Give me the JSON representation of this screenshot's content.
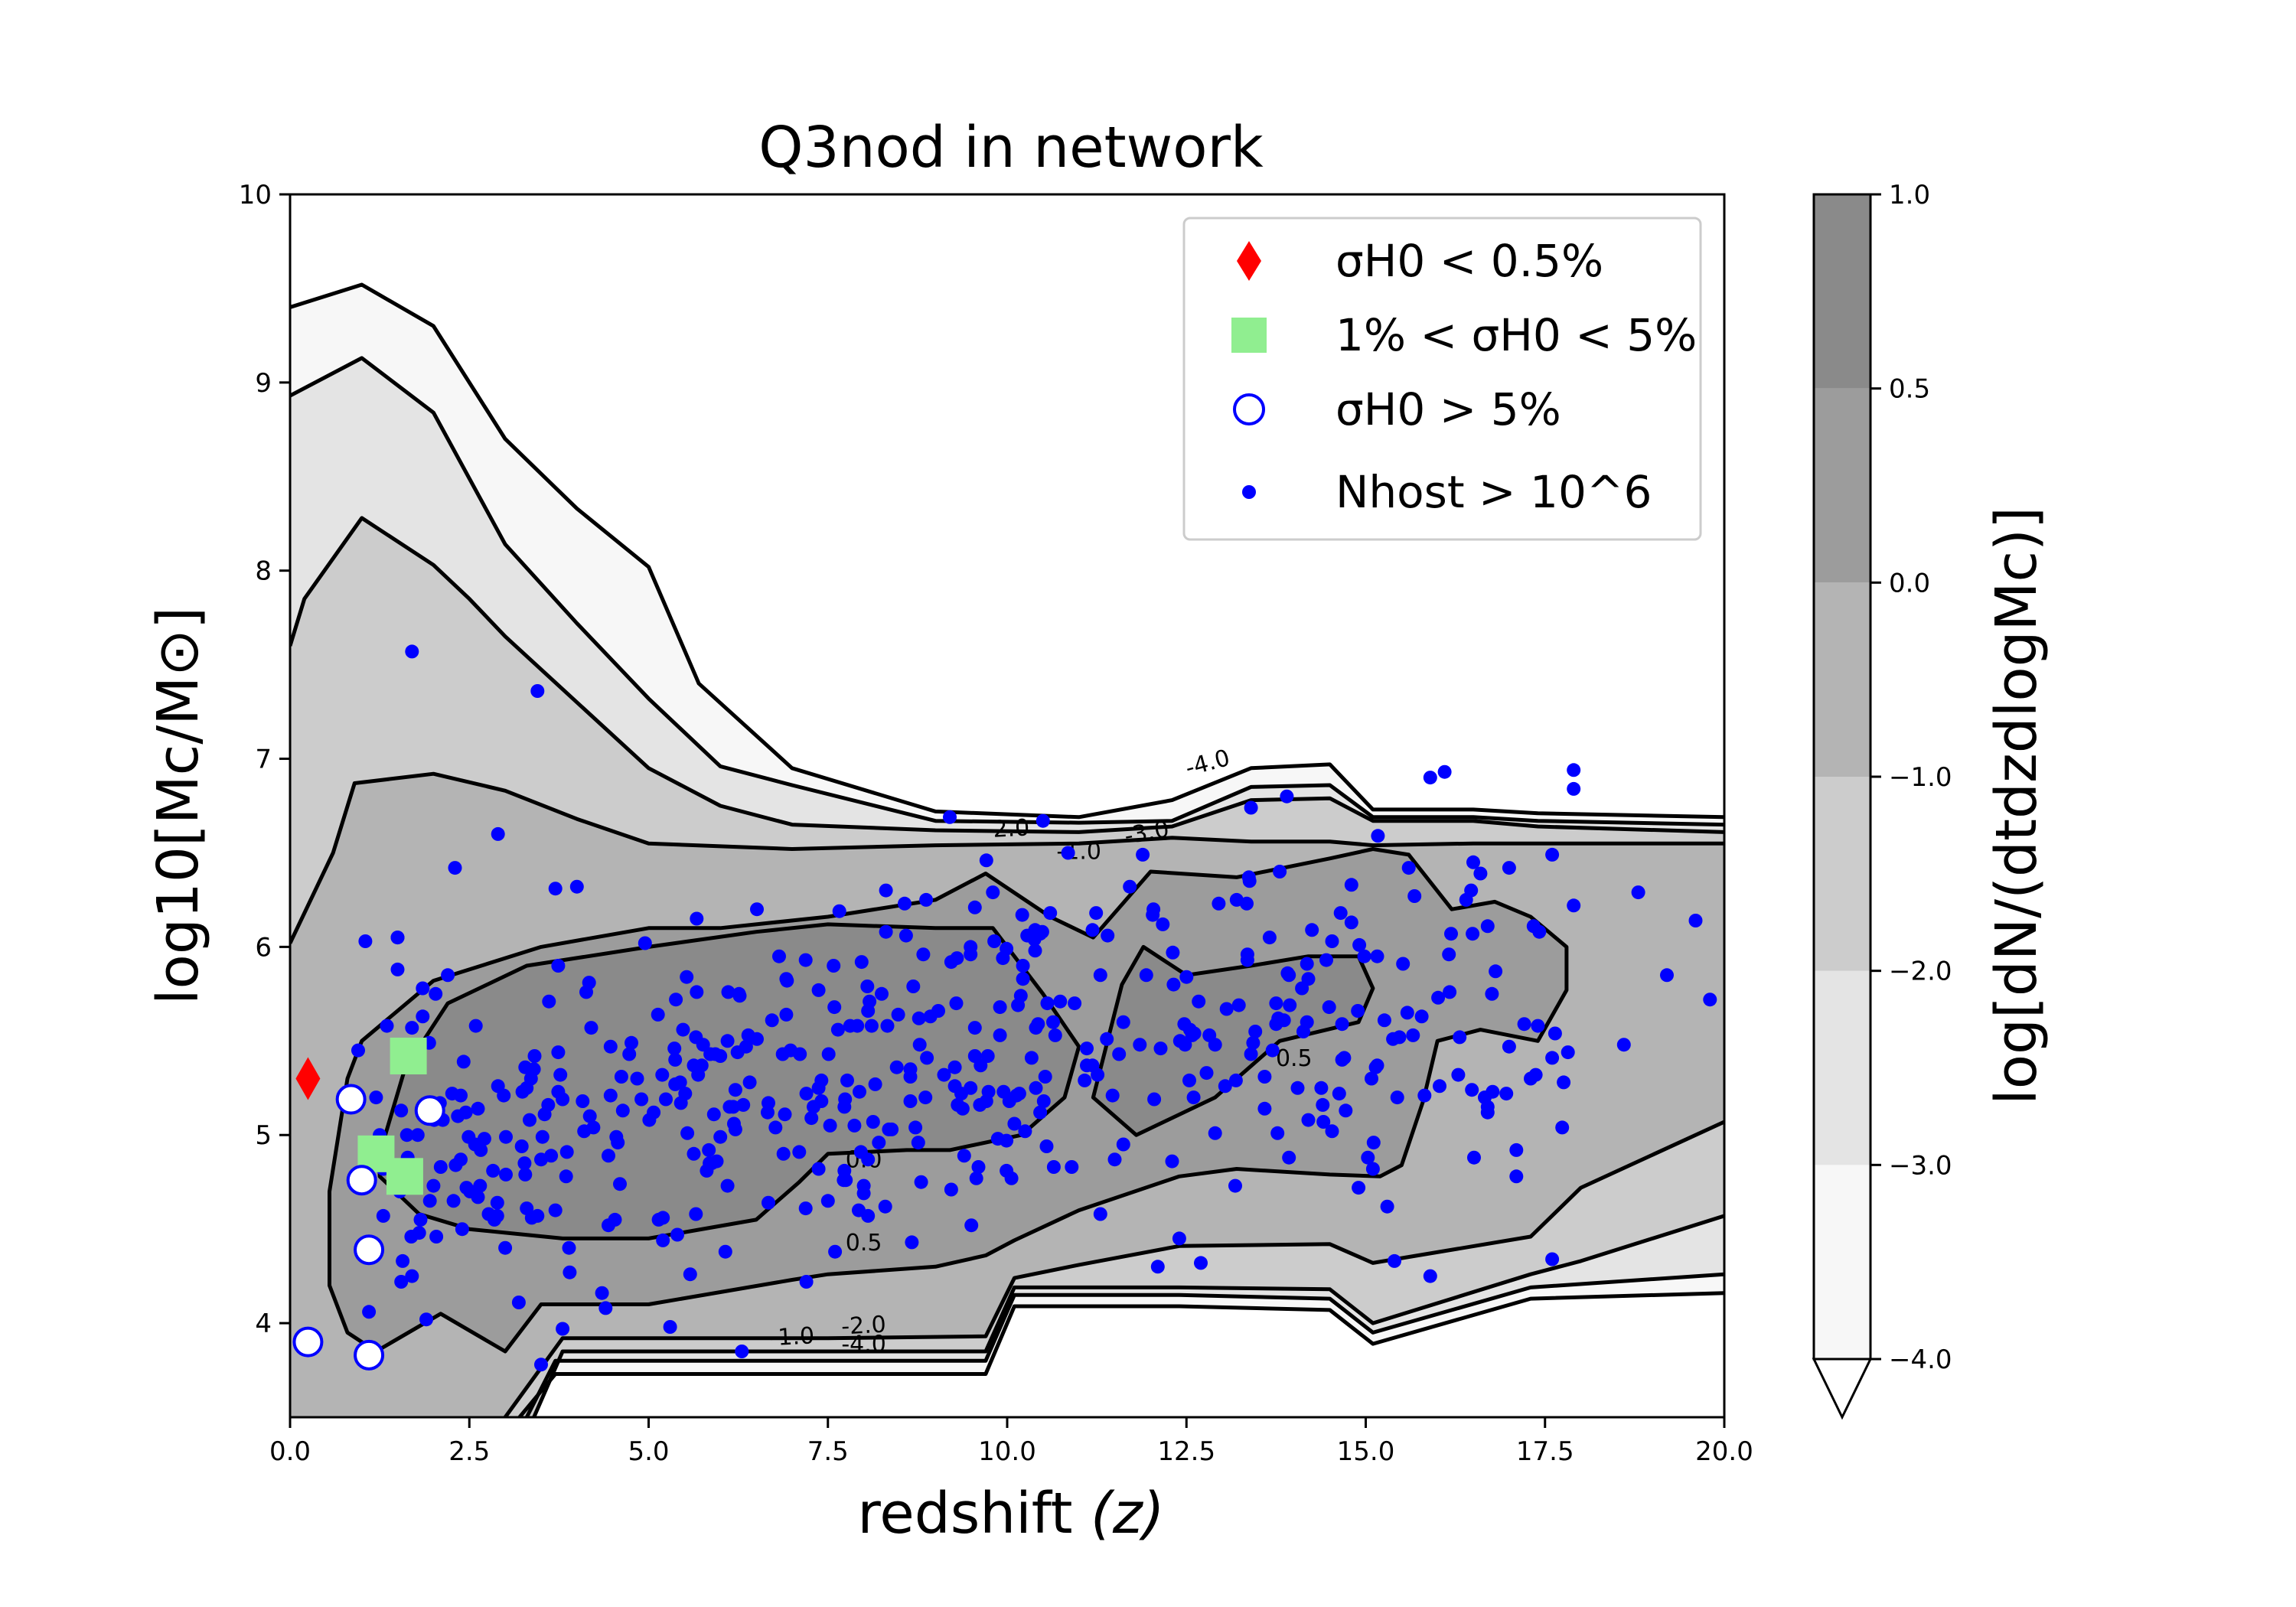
{
  "chart_data": {
    "type": "scatter",
    "title": "Q3nod in network",
    "xlabel": "redshift",
    "xlabel_var": "(z)",
    "ylabel": "log10[Mc/M⊙]",
    "colorbar_label": "log[dN/(dtdzdlogMc)]",
    "xlim": [
      0,
      20
    ],
    "ylim": [
      3.5,
      10
    ],
    "x_ticks": [
      "0.0",
      "2.5",
      "5.0",
      "7.5",
      "10.0",
      "12.5",
      "15.0",
      "17.5",
      "20.0"
    ],
    "y_ticks": [
      "4",
      "5",
      "6",
      "7",
      "8",
      "9",
      "10"
    ],
    "colorbar_ticks": [
      "1.0",
      "0.5",
      "0.0",
      "−1.0",
      "−2.0",
      "−3.0",
      "−4.0"
    ],
    "colorbar_levels": [
      -4.0,
      -3.0,
      -2.0,
      -1.0,
      0.0,
      0.5,
      1.0
    ],
    "colorbar_extend": "min",
    "grid": false,
    "legend_position": "top-right",
    "legend": [
      {
        "label": "σH0 < 0.5%",
        "marker": "diamond",
        "color": "#ff0000"
      },
      {
        "label": "1% < σH0 < 5%",
        "marker": "square",
        "color": "#90ee90"
      },
      {
        "label": "σH0 > 5%",
        "marker": "open-circle",
        "color": "#0000ff"
      },
      {
        "label": "Nhost > 10^6",
        "marker": "dot",
        "color": "#0000ff"
      }
    ],
    "contour_labels": [
      "-4.0",
      "-3.0",
      "-2.0",
      "-1.0",
      "0.5",
      "0.0",
      "0.5",
      "-1.0",
      "-2.0",
      "-4.0"
    ],
    "fill_colors": {
      "-4.0": "#f7f7f7",
      "-3.0": "#e4e4e4",
      "-2.0": "#cccccc",
      "-1.0": "#b4b4b4",
      "0.0": "#9c9c9c",
      "0.5": "#8a8a8a"
    },
    "contours": [
      {
        "level": -4.0,
        "upper": [
          [
            0,
            9.4
          ],
          [
            1,
            9.52
          ],
          [
            2,
            9.3
          ],
          [
            3,
            8.7
          ],
          [
            4,
            8.33
          ],
          [
            5,
            8.02
          ],
          [
            5.7,
            7.4
          ],
          [
            7,
            6.95
          ],
          [
            9,
            6.72
          ],
          [
            11,
            6.69
          ],
          [
            12.3,
            6.78
          ],
          [
            13.4,
            6.95
          ],
          [
            14.5,
            6.97
          ],
          [
            15.1,
            6.73
          ],
          [
            16.5,
            6.73
          ],
          [
            17.4,
            6.71
          ],
          [
            20,
            6.69
          ]
        ],
        "lower": [
          [
            20,
            4.16
          ],
          [
            17.3,
            4.13
          ],
          [
            15.1,
            3.89
          ],
          [
            14.5,
            4.07
          ],
          [
            12.4,
            4.09
          ],
          [
            10.1,
            4.09
          ],
          [
            9.7,
            3.73
          ],
          [
            3.7,
            3.73
          ],
          [
            3.2,
            3.5
          ]
        ]
      },
      {
        "level": -3.0,
        "upper": [
          [
            0,
            8.93
          ],
          [
            1,
            9.13
          ],
          [
            2,
            8.84
          ],
          [
            3,
            8.14
          ],
          [
            4,
            7.72
          ],
          [
            5,
            7.32
          ],
          [
            6,
            6.96
          ],
          [
            7,
            6.86
          ],
          [
            9,
            6.67
          ],
          [
            11,
            6.66
          ],
          [
            12.3,
            6.67
          ],
          [
            13.4,
            6.85
          ],
          [
            14.5,
            6.86
          ],
          [
            15.1,
            6.69
          ],
          [
            16.5,
            6.69
          ],
          [
            17.4,
            6.67
          ],
          [
            20,
            6.65
          ]
        ],
        "lower": [
          [
            20,
            4.26
          ],
          [
            17.3,
            4.19
          ],
          [
            15.1,
            3.95
          ],
          [
            14.5,
            4.13
          ],
          [
            12.4,
            4.15
          ],
          [
            10.1,
            4.15
          ],
          [
            9.7,
            3.8
          ],
          [
            3.7,
            3.8
          ],
          [
            3.3,
            3.5
          ]
        ]
      },
      {
        "level": -2.0,
        "upper": [
          [
            0,
            7.6
          ],
          [
            0.2,
            7.85
          ],
          [
            1,
            8.28
          ],
          [
            2,
            8.03
          ],
          [
            2.5,
            7.85
          ],
          [
            3,
            7.65
          ],
          [
            4,
            7.3
          ],
          [
            5,
            6.95
          ],
          [
            6,
            6.75
          ],
          [
            7,
            6.65
          ],
          [
            9,
            6.62
          ],
          [
            11,
            6.61
          ],
          [
            12.3,
            6.64
          ],
          [
            13.4,
            6.78
          ],
          [
            14.5,
            6.79
          ],
          [
            15.1,
            6.67
          ],
          [
            16.5,
            6.67
          ],
          [
            17.4,
            6.64
          ],
          [
            20,
            6.61
          ]
        ],
        "lower": [
          [
            20,
            4.57
          ],
          [
            18,
            4.33
          ],
          [
            17.3,
            4.26
          ],
          [
            15.1,
            4.0
          ],
          [
            14.5,
            4.18
          ],
          [
            12.4,
            4.19
          ],
          [
            10.1,
            4.19
          ],
          [
            9.7,
            3.85
          ],
          [
            3.8,
            3.85
          ],
          [
            3.4,
            3.5
          ]
        ]
      },
      {
        "level": -1.0,
        "upper": [
          [
            0,
            6.02
          ],
          [
            0.6,
            6.5
          ],
          [
            0.9,
            6.87
          ],
          [
            2,
            6.92
          ],
          [
            3,
            6.83
          ],
          [
            4,
            6.68
          ],
          [
            5,
            6.55
          ],
          [
            7,
            6.52
          ],
          [
            9,
            6.54
          ],
          [
            11,
            6.55
          ],
          [
            12.3,
            6.58
          ],
          [
            13.4,
            6.56
          ],
          [
            14.5,
            6.56
          ],
          [
            15.1,
            6.54
          ],
          [
            16.5,
            6.55
          ],
          [
            17.4,
            6.55
          ],
          [
            20,
            6.55
          ]
        ],
        "lower": [
          [
            20,
            5.07
          ],
          [
            18,
            4.72
          ],
          [
            17.3,
            4.46
          ],
          [
            15.1,
            4.32
          ],
          [
            14.5,
            4.42
          ],
          [
            12.4,
            4.41
          ],
          [
            11,
            4.31
          ],
          [
            10.1,
            4.24
          ],
          [
            9.7,
            3.93
          ],
          [
            7.5,
            3.92
          ],
          [
            7,
            3.92
          ],
          [
            3.8,
            3.92
          ],
          [
            3,
            3.5
          ]
        ]
      }
    ],
    "closed_contours": [
      {
        "level": 0.0,
        "points": [
          [
            0.55,
            4.7
          ],
          [
            0.8,
            5.3
          ],
          [
            1.0,
            5.5
          ],
          [
            2,
            5.82
          ],
          [
            3.5,
            6.0
          ],
          [
            5,
            6.1
          ],
          [
            6,
            6.1
          ],
          [
            7.5,
            6.16
          ],
          [
            9,
            6.25
          ],
          [
            9.7,
            6.39
          ],
          [
            10.6,
            6.16
          ],
          [
            11.2,
            6.05
          ],
          [
            12,
            6.4
          ],
          [
            13.2,
            6.37
          ],
          [
            14.5,
            6.47
          ],
          [
            15.1,
            6.52
          ],
          [
            15.6,
            6.49
          ],
          [
            16.2,
            6.2
          ],
          [
            16.8,
            6.24
          ],
          [
            17.3,
            6.16
          ],
          [
            17.8,
            6.0
          ],
          [
            17.8,
            5.77
          ],
          [
            17.4,
            5.5
          ],
          [
            16.6,
            5.56
          ],
          [
            16.0,
            5.5
          ],
          [
            15.8,
            5.18
          ],
          [
            15.5,
            4.84
          ],
          [
            15.2,
            4.78
          ],
          [
            14.5,
            4.79
          ],
          [
            13.2,
            4.82
          ],
          [
            12.4,
            4.78
          ],
          [
            11,
            4.6
          ],
          [
            10.1,
            4.44
          ],
          [
            9.7,
            4.36
          ],
          [
            9,
            4.3
          ],
          [
            7.5,
            4.26
          ],
          [
            7,
            4.23
          ],
          [
            5,
            4.1
          ],
          [
            3.5,
            4.1
          ],
          [
            3.0,
            3.85
          ],
          [
            2.1,
            4.05
          ],
          [
            1.2,
            3.85
          ],
          [
            0.8,
            3.95
          ],
          [
            0.55,
            4.2
          ]
        ]
      },
      {
        "level": 0.5,
        "points": [
          [
            1.25,
            4.9
          ],
          [
            1.6,
            5.35
          ],
          [
            2.2,
            5.7
          ],
          [
            3.3,
            5.9
          ],
          [
            5,
            6.0
          ],
          [
            6.5,
            6.08
          ],
          [
            7.5,
            6.12
          ],
          [
            9,
            6.1
          ],
          [
            9.8,
            6.1
          ],
          [
            10.5,
            5.75
          ],
          [
            11.0,
            5.47
          ],
          [
            10.8,
            5.2
          ],
          [
            10.2,
            5.0
          ],
          [
            9.2,
            4.92
          ],
          [
            8.6,
            4.92
          ],
          [
            7.5,
            4.9
          ],
          [
            7.1,
            4.75
          ],
          [
            6.5,
            4.55
          ],
          [
            5,
            4.45
          ],
          [
            3.8,
            4.45
          ],
          [
            2.5,
            4.5
          ],
          [
            1.8,
            4.58
          ],
          [
            1.25,
            4.78
          ]
        ]
      },
      {
        "level": 0.5,
        "points": [
          [
            11.2,
            5.2
          ],
          [
            11.6,
            5.8
          ],
          [
            11.9,
            6.0
          ],
          [
            12.5,
            5.85
          ],
          [
            13.4,
            5.9
          ],
          [
            14.2,
            5.95
          ],
          [
            14.9,
            5.95
          ],
          [
            15.1,
            5.78
          ],
          [
            14.9,
            5.6
          ],
          [
            13.8,
            5.5
          ],
          [
            13.2,
            5.3
          ],
          [
            12.9,
            5.2
          ],
          [
            11.8,
            5.0
          ]
        ]
      }
    ],
    "sigma_lt_0.5": [
      [
        0.25,
        5.3
      ]
    ],
    "sigma_1_to_5": [
      [
        1.65,
        5.42
      ],
      [
        1.2,
        4.9
      ],
      [
        1.6,
        4.78
      ]
    ],
    "sigma_gt_5": [
      [
        0.85,
        5.19
      ],
      [
        1.95,
        5.13
      ],
      [
        1.0,
        4.76
      ],
      [
        1.1,
        4.39
      ],
      [
        1.1,
        3.83
      ],
      [
        0.25,
        3.9
      ]
    ],
    "hosts_gt_1e6": {
      "outliers": [
        [
          1.7,
          7.57
        ],
        [
          3.45,
          7.36
        ],
        [
          2.9,
          6.6
        ],
        [
          2.3,
          6.42
        ],
        [
          1.05,
          6.03
        ],
        [
          1.5,
          6.05
        ],
        [
          1.5,
          5.88
        ],
        [
          1.5,
          5.43
        ],
        [
          1.35,
          5.58
        ],
        [
          1.85,
          5.78
        ],
        [
          2.2,
          5.85
        ],
        [
          0.95,
          5.45
        ],
        [
          1.2,
          5.2
        ],
        [
          1.25,
          5.0
        ],
        [
          1.3,
          4.82
        ],
        [
          1.3,
          4.57
        ],
        [
          1.1,
          4.06
        ],
        [
          1.55,
          4.22
        ],
        [
          1.9,
          4.02
        ],
        [
          2.4,
          4.5
        ],
        [
          3.5,
          3.78
        ],
        [
          3.8,
          3.97
        ],
        [
          3.9,
          4.27
        ],
        [
          4.4,
          4.08
        ],
        [
          5.3,
          3.98
        ],
        [
          6.3,
          3.85
        ],
        [
          7.2,
          4.22
        ],
        [
          12.4,
          4.45
        ],
        [
          12.1,
          4.3
        ],
        [
          12.7,
          4.32
        ],
        [
          15.4,
          4.33
        ],
        [
          15.9,
          4.25
        ],
        [
          17.6,
          4.34
        ],
        [
          17.9,
          6.84
        ],
        [
          17.9,
          6.94
        ],
        [
          15.9,
          6.9
        ],
        [
          16.1,
          6.93
        ],
        [
          13.4,
          6.74
        ],
        [
          13.9,
          6.8
        ],
        [
          9.2,
          6.69
        ],
        [
          10.5,
          6.67
        ],
        [
          18.8,
          6.29
        ],
        [
          19.2,
          5.85
        ],
        [
          19.6,
          6.14
        ],
        [
          19.8,
          5.72
        ],
        [
          18.6,
          5.48
        ],
        [
          17.0,
          5.47
        ],
        [
          16.7,
          5.12
        ],
        [
          16.7,
          5.15
        ],
        [
          17.1,
          4.78
        ],
        [
          15.3,
          4.62
        ],
        [
          15.1,
          4.82
        ],
        [
          12.9,
          5.01
        ],
        [
          12.3,
          4.86
        ],
        [
          11.5,
          4.87
        ],
        [
          10.9,
          4.83
        ],
        [
          11.3,
          4.58
        ],
        [
          7.5,
          4.65
        ],
        [
          6.1,
          4.73
        ],
        [
          8.0,
          4.69
        ],
        [
          8.8,
          4.75
        ],
        [
          9.4,
          4.89
        ],
        [
          5.4,
          4.47
        ],
        [
          3.0,
          4.4
        ],
        [
          7.6,
          4.38
        ],
        [
          8.3,
          4.62
        ],
        [
          9.5,
          4.52
        ],
        [
          14.9,
          4.72
        ],
        [
          14.2,
          5.08
        ],
        [
          17.6,
          5.41
        ],
        [
          17.4,
          5.58
        ],
        [
          17.9,
          6.22
        ],
        [
          17.0,
          6.42
        ],
        [
          17.6,
          6.49
        ],
        [
          16.5,
          6.45
        ],
        [
          16.6,
          6.39
        ],
        [
          15.6,
          6.42
        ],
        [
          14.8,
          6.33
        ],
        [
          13.8,
          6.4
        ],
        [
          4.0,
          6.32
        ],
        [
          3.7,
          6.31
        ],
        [
          1.5,
          6.05
        ]
      ]
    }
  }
}
